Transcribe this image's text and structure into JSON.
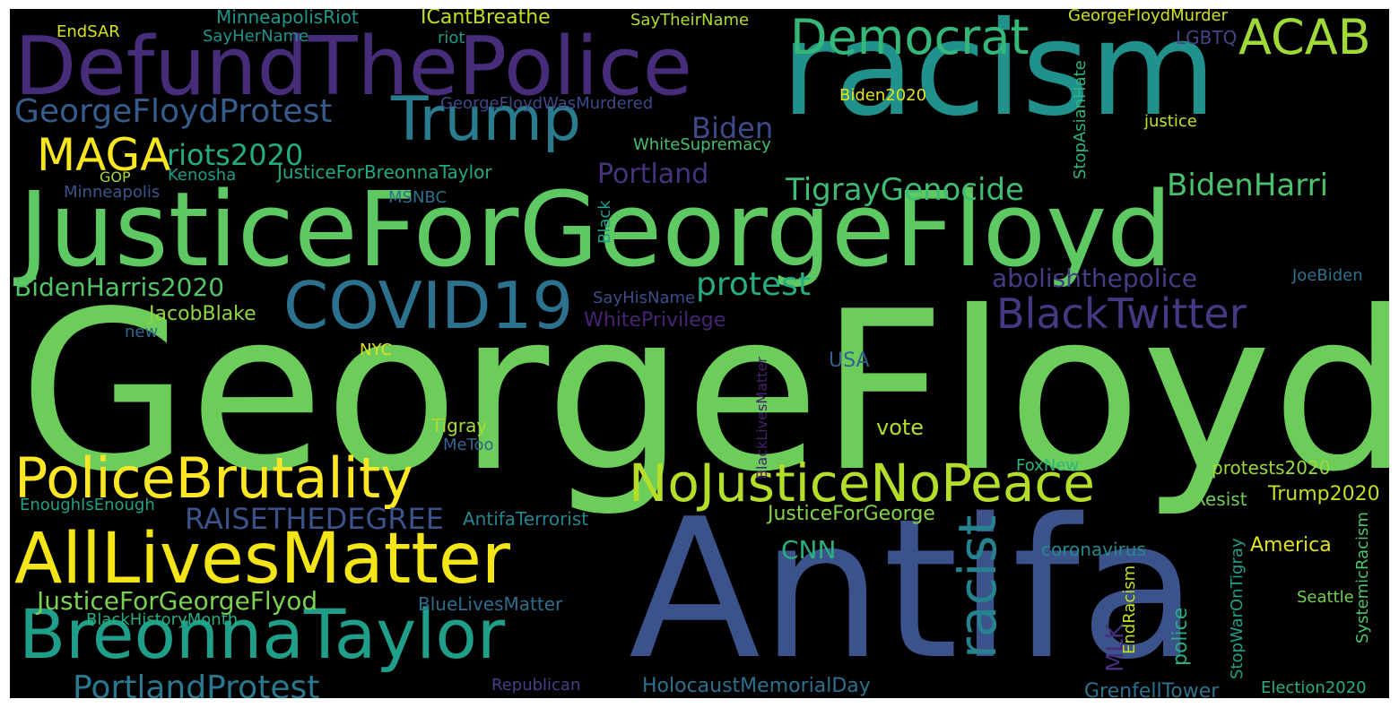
{
  "wordcloud": {
    "palette": "viridis",
    "background": "#000000",
    "words": [
      {
        "id": "georgefloyd",
        "text": "GeorgeFloyd",
        "color": "#6ccd5a"
      },
      {
        "id": "antifa",
        "text": "Antifa",
        "color": "#3b528b"
      },
      {
        "id": "racism",
        "text": "racism",
        "color": "#21918c"
      },
      {
        "id": "justiceforgeorgefloyd",
        "text": "JusticeForGeorgeFloyd",
        "color": "#5ec962"
      },
      {
        "id": "defundthepolice",
        "text": "DefundThePolice",
        "color": "#472c7a"
      },
      {
        "id": "trump",
        "text": "Trump",
        "color": "#287c8e"
      },
      {
        "id": "democrat",
        "text": "Democrat",
        "color": "#35b779"
      },
      {
        "id": "acab",
        "text": "ACAB",
        "color": "#a0da39"
      },
      {
        "id": "covid19",
        "text": "COVID19",
        "color": "#2c728e"
      },
      {
        "id": "alllivesmatter",
        "text": "AllLivesMatter",
        "color": "#f3e517"
      },
      {
        "id": "breonnataylor",
        "text": "BreonnaTaylor",
        "color": "#1f9e89"
      },
      {
        "id": "policebrutality",
        "text": "PoliceBrutality",
        "color": "#fde725"
      },
      {
        "id": "nojusticenopeace",
        "text": "NoJusticeNoPeace",
        "color": "#b5de2b"
      },
      {
        "id": "blacktwitter",
        "text": "BlackTwitter",
        "color": "#443983"
      },
      {
        "id": "racist",
        "text": "racist",
        "color": "#26828e"
      },
      {
        "id": "maga",
        "text": "MAGA",
        "color": "#f8e621"
      },
      {
        "id": "georgefloydprotest",
        "text": "GeorgeFloydProtest",
        "color": "#365c8d"
      },
      {
        "id": "biden",
        "text": "Biden",
        "color": "#3e4a89"
      },
      {
        "id": "riots2020",
        "text": "riots2020",
        "color": "#25ab82"
      },
      {
        "id": "tigraygenocide",
        "text": "TigrayGenocide",
        "color": "#3fbc73"
      },
      {
        "id": "bidenharri",
        "text": "BidenHarri",
        "color": "#4ac16d"
      },
      {
        "id": "portland",
        "text": "Portland",
        "color": "#46337e"
      },
      {
        "id": "bidenharris2020",
        "text": "BidenHarris2020",
        "color": "#52c569"
      },
      {
        "id": "protest",
        "text": "protest",
        "color": "#27ad81"
      },
      {
        "id": "abolishthepolice",
        "text": "abolishthepolice",
        "color": "#433e85"
      },
      {
        "id": "raisethedegree",
        "text": "RAISETHEDEGREE",
        "color": "#3b528b"
      },
      {
        "id": "justiceforgeorgeflyod",
        "text": "JusticeForGeorgeFlyod",
        "color": "#7ad151"
      },
      {
        "id": "portlandprotest",
        "text": "PortlandProtest",
        "color": "#2a788e"
      },
      {
        "id": "cnn",
        "text": "CNN",
        "color": "#29af7f"
      },
      {
        "id": "justiceforgeorge",
        "text": "JusticeForGeorge",
        "color": "#84d44b"
      },
      {
        "id": "jacobblake",
        "text": "JacobBlake",
        "color": "#8fd744"
      },
      {
        "id": "justiceforbreonnataylor",
        "text": "JusticeForBreonnaTaylor",
        "color": "#22a884"
      },
      {
        "id": "endsar",
        "text": "EndSAR",
        "color": "#d8e219"
      },
      {
        "id": "minneapolisriot",
        "text": "MinneapolisRiot",
        "color": "#1f988b"
      },
      {
        "id": "sayhername",
        "text": "SayHerName",
        "color": "#20928c"
      },
      {
        "id": "icantbreathe",
        "text": "ICantBreathe",
        "color": "#c0df25"
      },
      {
        "id": "riot",
        "text": "riot",
        "color": "#1e9b8a"
      },
      {
        "id": "saytheirname",
        "text": "SayTheirName",
        "color": "#addc30"
      },
      {
        "id": "lgbtq",
        "text": "LGBTQ",
        "color": "#404688"
      },
      {
        "id": "georgefloydmurder",
        "text": "GeorgeFloydMurder",
        "color": "#d0e11c"
      },
      {
        "id": "georgefloydwasmurdered",
        "text": "GeorgeFloydWasMurdered",
        "color": "#3e4989"
      },
      {
        "id": "biden2020",
        "text": "Biden2020",
        "color": "#e5e419"
      },
      {
        "id": "justice",
        "text": "justice",
        "color": "#c8e020"
      },
      {
        "id": "whitesupremacy",
        "text": "WhiteSupremacy",
        "color": "#44bf70"
      },
      {
        "id": "stopasianhate",
        "text": "StopAsianHate",
        "color": "#2fb47c"
      },
      {
        "id": "gop",
        "text": "GOP",
        "color": "#a2da37"
      },
      {
        "id": "kenosha",
        "text": "Kenosha",
        "color": "#1e9c89"
      },
      {
        "id": "minneapolis",
        "text": "Minneapolis",
        "color": "#39568c"
      },
      {
        "id": "msnbc",
        "text": "MSNBC",
        "color": "#2d718e"
      },
      {
        "id": "black",
        "text": "Black",
        "color": "#1fa088"
      },
      {
        "id": "sayhisname",
        "text": "SayHisName",
        "color": "#3d4e8a"
      },
      {
        "id": "whiteprivilege",
        "text": "WhitePrivilege",
        "color": "#482475"
      },
      {
        "id": "joebiden",
        "text": "JoeBiden",
        "color": "#2d708e"
      },
      {
        "id": "new",
        "text": "new",
        "color": "#31688e"
      },
      {
        "id": "nyc",
        "text": "NYC",
        "color": "#dae319"
      },
      {
        "id": "usa",
        "text": "USA",
        "color": "#355f8d"
      },
      {
        "id": "blacklivesmatter",
        "text": "BlackLivesMatter",
        "color": "#481f70"
      },
      {
        "id": "tigray",
        "text": "Tigray",
        "color": "#a8db34"
      },
      {
        "id": "metoo",
        "text": "MeToo",
        "color": "#33638d"
      },
      {
        "id": "vote",
        "text": "vote",
        "color": "#b2dd2d"
      },
      {
        "id": "foxnew",
        "text": "FoxNew",
        "color": "#2fb47c"
      },
      {
        "id": "protests2020",
        "text": "protests2020",
        "color": "#9bd93c"
      },
      {
        "id": "resist",
        "text": "Resist",
        "color": "#6ece58"
      },
      {
        "id": "trump2020",
        "text": "Trump2020",
        "color": "#c2df23"
      },
      {
        "id": "enoughisenough",
        "text": "EnoughIsEnough",
        "color": "#1fa187"
      },
      {
        "id": "antifaterrorist",
        "text": "AntifaTerrorist",
        "color": "#25858e"
      },
      {
        "id": "coronavirus",
        "text": "coronavirus",
        "color": "#23898e"
      },
      {
        "id": "america",
        "text": "America",
        "color": "#dfe318"
      },
      {
        "id": "mlk",
        "text": "MLK",
        "color": "#472d7b"
      },
      {
        "id": "endracism",
        "text": "EndRacism",
        "color": "#c5e021"
      },
      {
        "id": "police",
        "text": "police",
        "color": "#29af7f"
      },
      {
        "id": "stopwarontigray",
        "text": "StopWarOnTigray",
        "color": "#1f9f88"
      },
      {
        "id": "systemicracism",
        "text": "SystemicRacism",
        "color": "#4ec36b"
      },
      {
        "id": "seattle",
        "text": "Seattle",
        "color": "#73d056"
      },
      {
        "id": "bluelivesmatter",
        "text": "BlueLivesMatter",
        "color": "#2e6e8e"
      },
      {
        "id": "blackhistorymonth",
        "text": "BlackHistoryMonth",
        "color": "#27ad81"
      },
      {
        "id": "republican",
        "text": "Republican",
        "color": "#414287"
      },
      {
        "id": "holocaustmemorialday",
        "text": "HolocaustMemorialDay",
        "color": "#2d708e"
      },
      {
        "id": "grenfelltower",
        "text": "GrenfellTower",
        "color": "#2c728e"
      },
      {
        "id": "election2020",
        "text": "Election2020",
        "color": "#2ab07f"
      }
    ]
  }
}
